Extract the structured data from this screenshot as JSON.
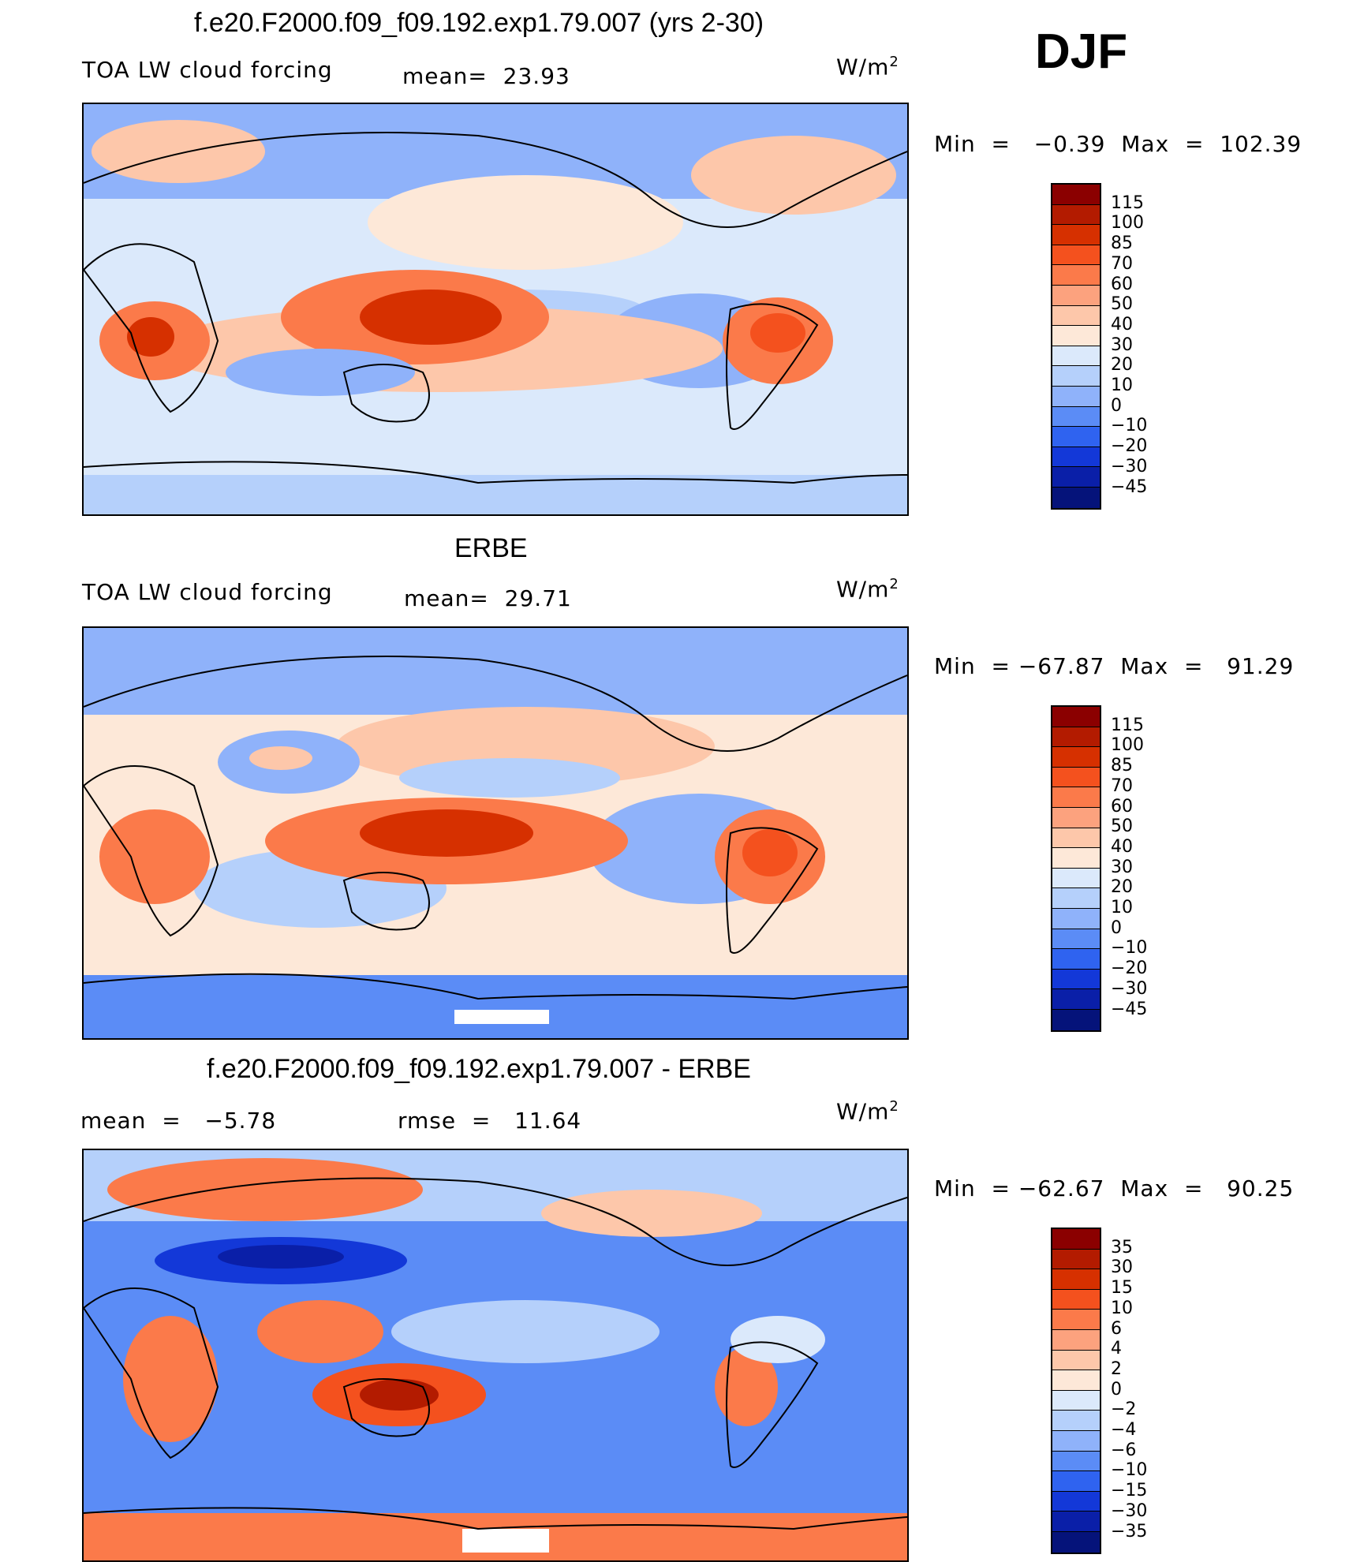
{
  "season": "DJF",
  "units_base": "W/m",
  "units_exp": "2",
  "panels": [
    {
      "title": "f.e20.F2000.f09_f09.192.exp1.79.007 (yrs 2-30)",
      "left_label": "TOA LW cloud forcing",
      "center_label": "mean=  23.93",
      "minmax": "Min  =   −0.39  Max  =  102.39",
      "colorbar_levels": [
        "115",
        "100",
        "85",
        "70",
        "60",
        "50",
        "40",
        "30",
        "20",
        "10",
        "0",
        "−10",
        "−20",
        "−30",
        "−45"
      ]
    },
    {
      "title": "ERBE",
      "left_label": "TOA LW cloud forcing",
      "center_label": "mean=  29.71",
      "minmax": "Min  = −67.87  Max  =   91.29",
      "colorbar_levels": [
        "115",
        "100",
        "85",
        "70",
        "60",
        "50",
        "40",
        "30",
        "20",
        "10",
        "0",
        "−10",
        "−20",
        "−30",
        "−45"
      ]
    },
    {
      "title": "f.e20.F2000.f09_f09.192.exp1.79.007 - ERBE",
      "left_label": "mean  =   −5.78",
      "center_label": "rmse  =   11.64",
      "minmax": "Min  = −62.67  Max  =   90.25",
      "colorbar_levels": [
        "35",
        "30",
        "15",
        "10",
        "6",
        "4",
        "2",
        "0",
        "−2",
        "−4",
        "−6",
        "−10",
        "−15",
        "−30",
        "−35"
      ]
    }
  ],
  "colors": {
    "palette": [
      "#8b0000",
      "#b31b00",
      "#d63000",
      "#f4511e",
      "#fb7a4a",
      "#fca27e",
      "#fdc7aa",
      "#fde8d8",
      "#dbe9fb",
      "#b5d0fb",
      "#8fb2fa",
      "#5b8cf6",
      "#2f63f0",
      "#1338d8",
      "#0a1fa8",
      "#05137a"
    ],
    "land_outline": "#000000"
  }
}
